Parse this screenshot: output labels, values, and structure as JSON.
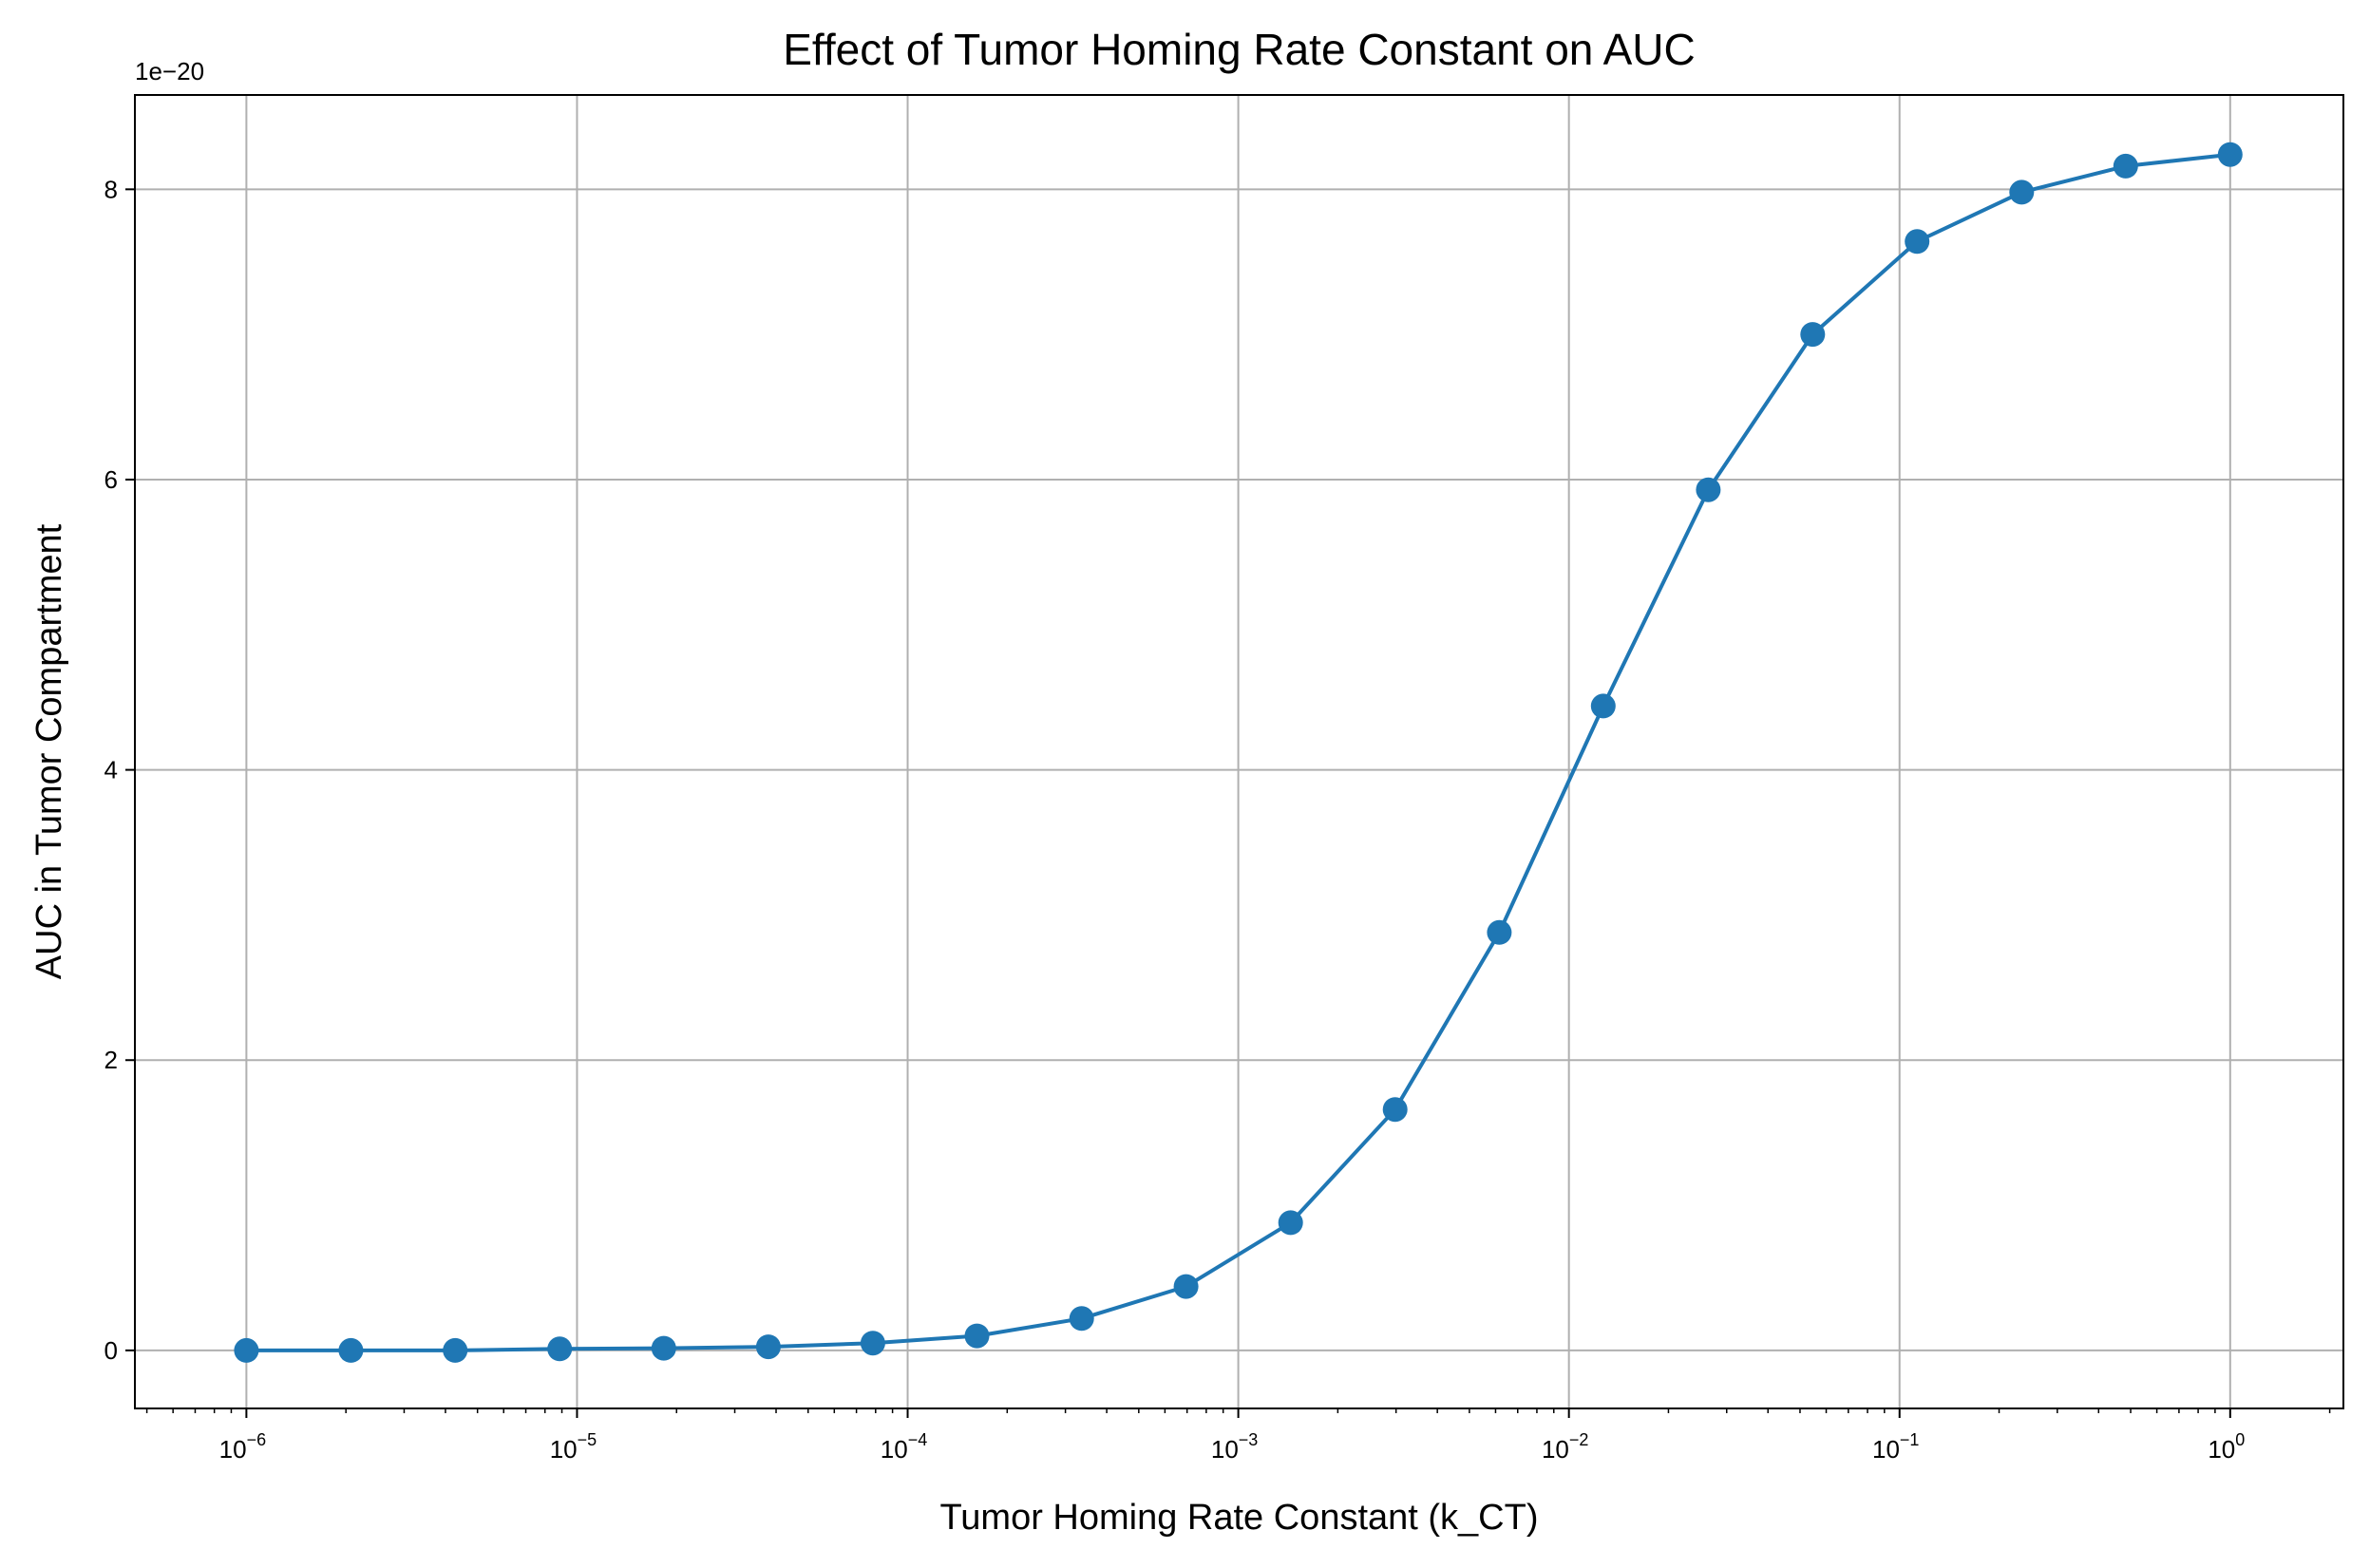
{
  "chart_data": {
    "type": "line",
    "title": "Effect of Tumor Homing Rate Constant on AUC",
    "xlabel": "Tumor Homing Rate Constant (k_CT)",
    "ylabel": "AUC in Tumor Compartment",
    "x_scale": "log",
    "y_offset_label": "1e−20",
    "xlim": [
      4.6e-07,
      2.2
    ],
    "ylim": [
      -0.4,
      8.65
    ],
    "x_ticks": [
      {
        "value": 1e-06,
        "base": "10",
        "exp": "−6"
      },
      {
        "value": 1e-05,
        "base": "10",
        "exp": "−5"
      },
      {
        "value": 0.0001,
        "base": "10",
        "exp": "−4"
      },
      {
        "value": 0.001,
        "base": "10",
        "exp": "−3"
      },
      {
        "value": 0.01,
        "base": "10",
        "exp": "−2"
      },
      {
        "value": 0.1,
        "base": "10",
        "exp": "−1"
      },
      {
        "value": 1,
        "base": "10",
        "exp": "0"
      }
    ],
    "y_ticks": [
      {
        "value": 0,
        "label": "0"
      },
      {
        "value": 2,
        "label": "2"
      },
      {
        "value": 4,
        "label": "4"
      },
      {
        "value": 6,
        "label": "6"
      },
      {
        "value": 8,
        "label": "8"
      }
    ],
    "grid": true,
    "color": "#1f77b4",
    "series": [
      {
        "x": [
          1e-06,
          2.07e-06,
          4.28e-06,
          8.86e-06,
          1.83e-05,
          3.79e-05,
          7.85e-05,
          0.000162,
          0.000336,
          0.000695,
          0.00144,
          0.00298,
          0.00616,
          0.0127,
          0.0264,
          0.0546,
          0.113,
          0.234,
          0.483,
          1
        ],
        "y": [
          0.0,
          0.0,
          0.0,
          0.01,
          0.015,
          0.025,
          0.05,
          0.1,
          0.22,
          0.44,
          0.88,
          1.66,
          2.88,
          4.44,
          5.93,
          7.0,
          7.64,
          7.98,
          8.16,
          8.24
        ]
      }
    ]
  }
}
